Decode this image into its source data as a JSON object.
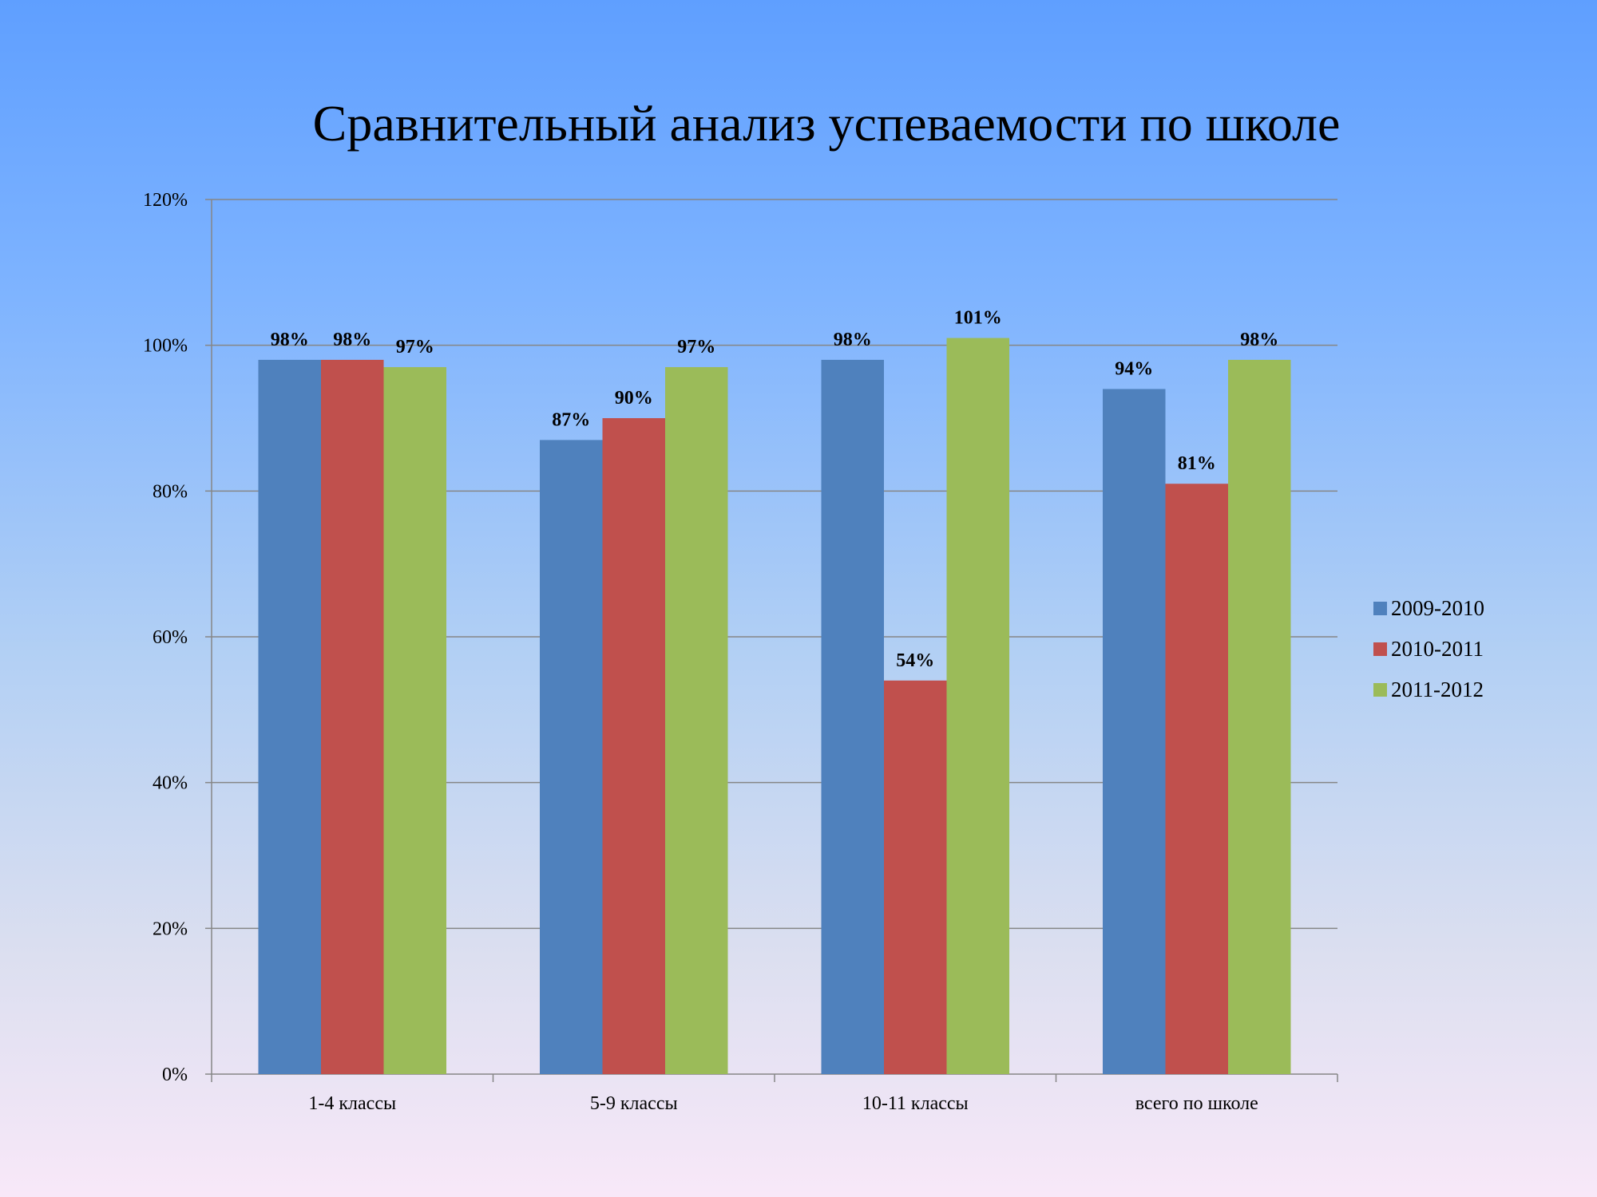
{
  "chart_data": {
    "type": "bar",
    "title": "Сравнительный анализ успеваемости по школе",
    "categories": [
      "1-4 классы",
      "5-9 классы",
      "10-11 классы",
      "всего по школе"
    ],
    "series": [
      {
        "name": "2009-2010",
        "values": [
          98,
          87,
          98,
          94
        ],
        "color": "#4f81bd"
      },
      {
        "name": "2010-2011",
        "values": [
          98,
          90,
          54,
          81
        ],
        "color": "#c0504d"
      },
      {
        "name": "2011-2012",
        "values": [
          97,
          97,
          101,
          98
        ],
        "color": "#9bbb59"
      }
    ],
    "ylim": [
      0,
      120
    ],
    "yticks": [
      0,
      20,
      40,
      60,
      80,
      100,
      120
    ],
    "value_suffix": "%",
    "grid": true,
    "legend_position": "right",
    "gridline_color": "#868686",
    "axis_color": "#868686"
  }
}
